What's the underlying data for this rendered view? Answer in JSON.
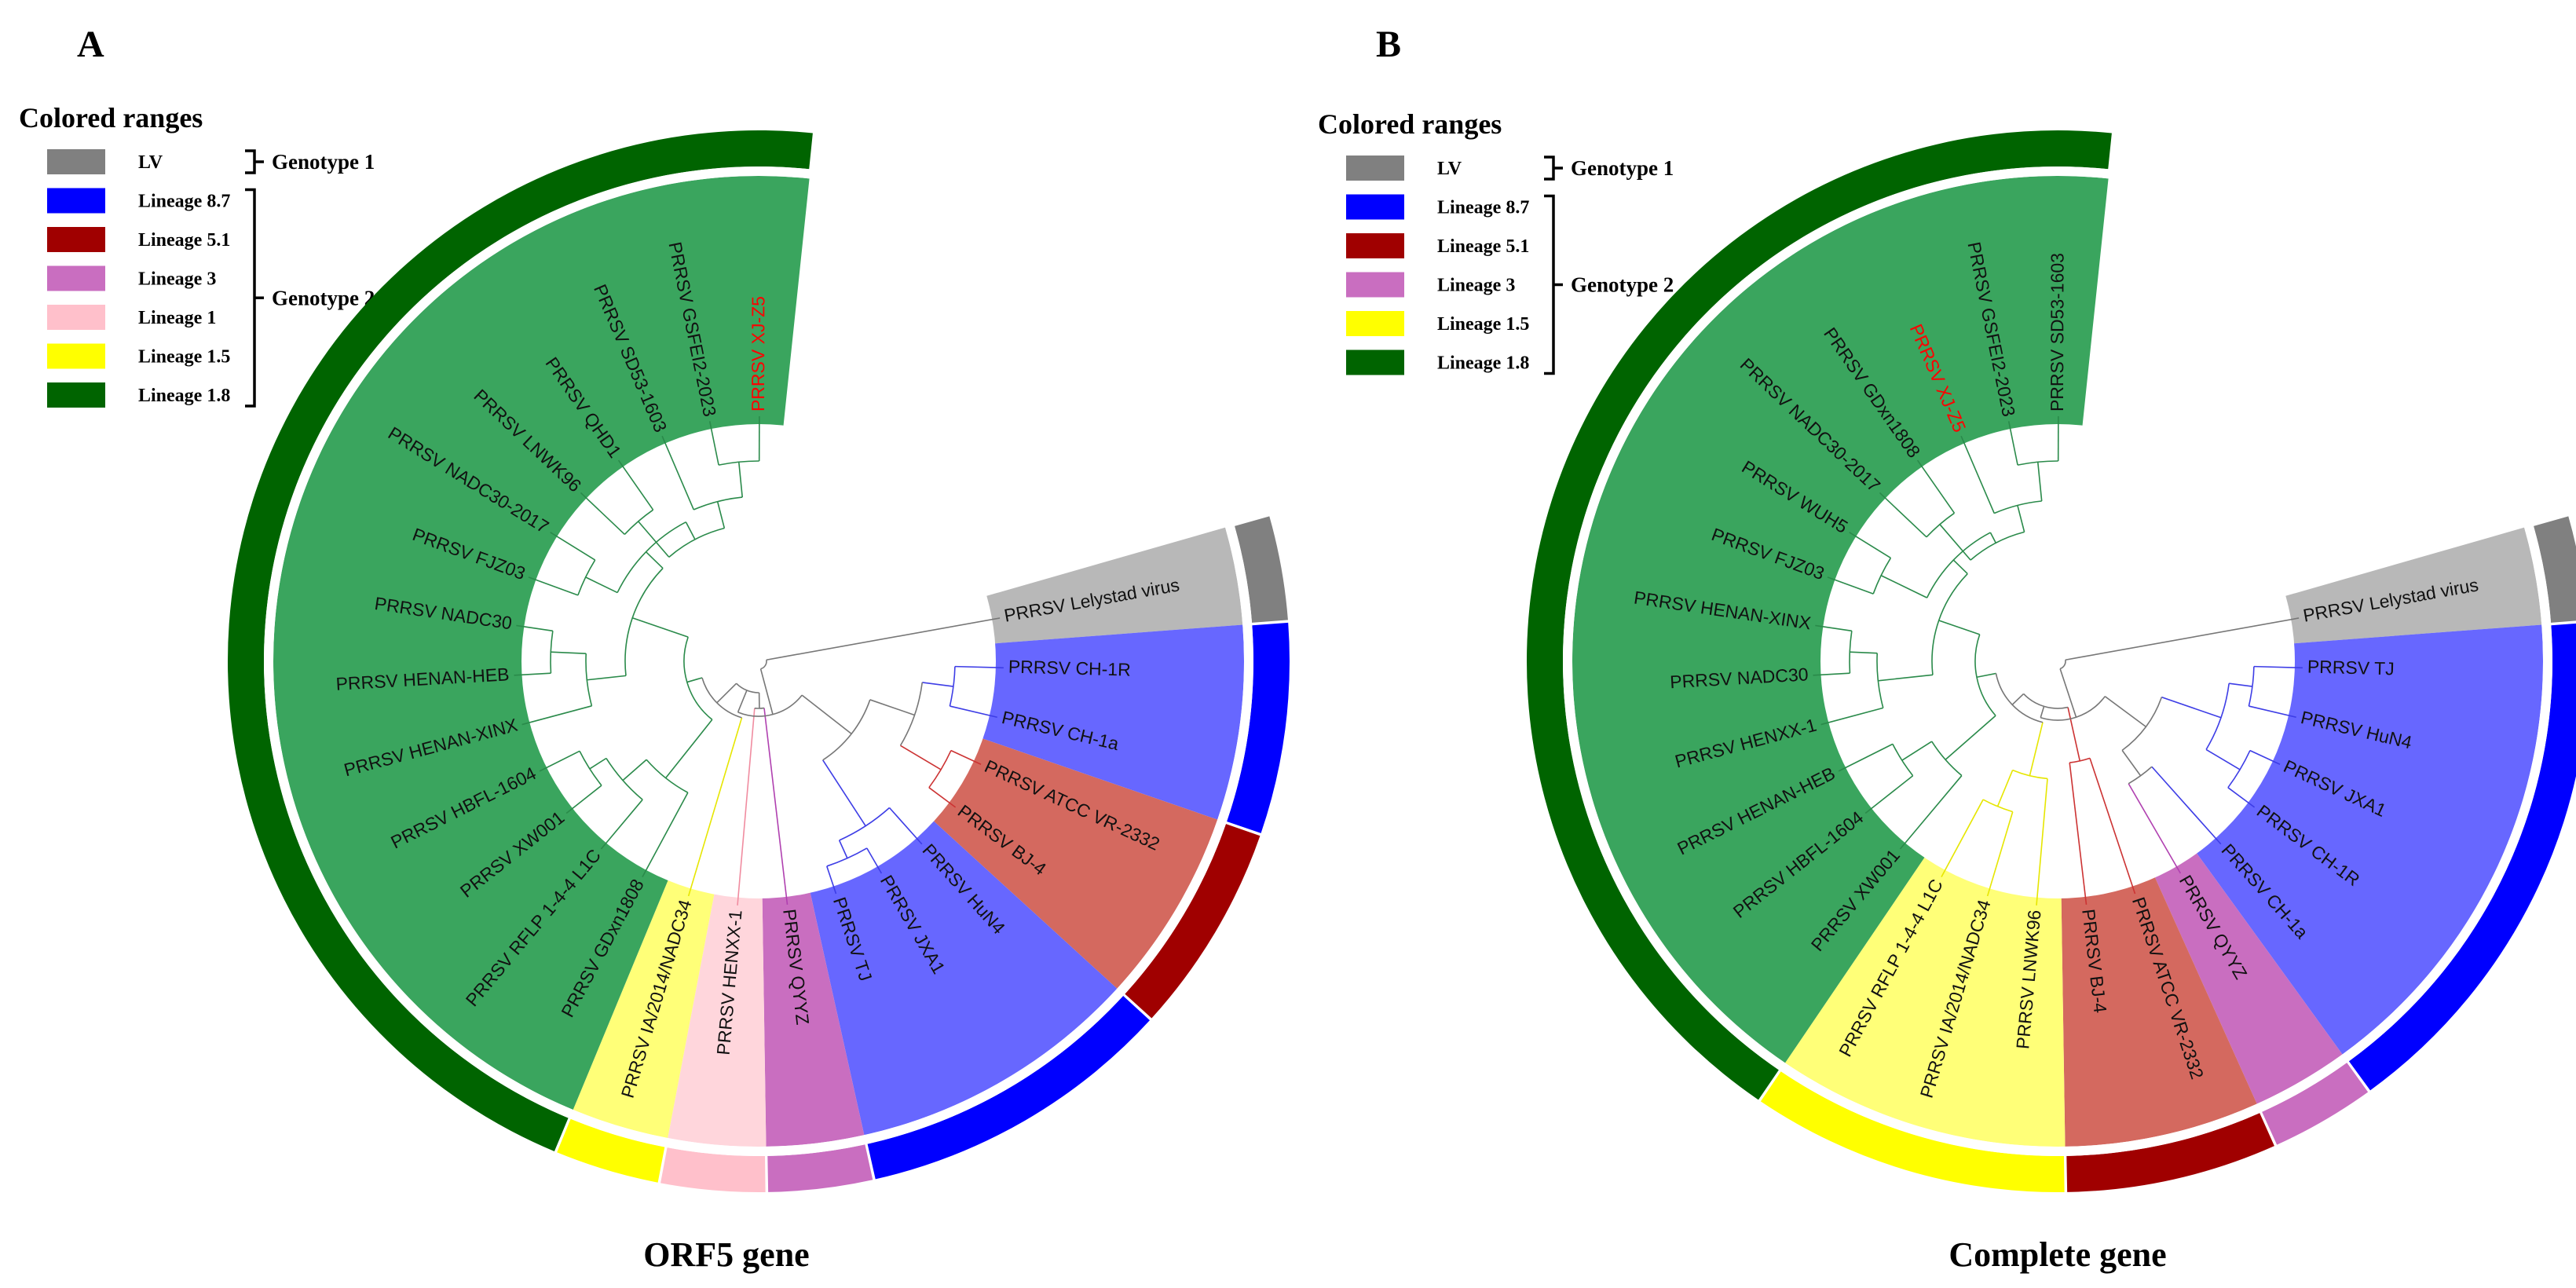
{
  "colors": {
    "LV": "#808080",
    "L8.7": "#0000ff",
    "L5.1": "#a00000",
    "L3": "#c96ec0",
    "L1": "#ffc0cb",
    "L1.5": "#ffff00",
    "L1.8": "#006400",
    "wedge": {
      "LV": "#b8b8b8",
      "L8.7": "#6767ff",
      "L5.1": "#d4695f",
      "L3": "#c96ec0",
      "L1": "#ffd6dc",
      "L1.5": "#ffff78",
      "L1.8": "#3aa55e"
    },
    "branch": {
      "LV": "#777777",
      "L8.7": "#3d3de6",
      "L5.1": "#cc3333",
      "L3": "#b040b0",
      "L1": "#f08ca0",
      "L1.5": "#e6e600",
      "L1.8": "#2a8a4a"
    },
    "highlight": "#ff0000"
  },
  "panels": [
    {
      "id": "A",
      "label": "A",
      "title": "ORF5 gene",
      "legend": {
        "heading": "Colored ranges",
        "entries": [
          {
            "key": "LV",
            "label": "LV"
          },
          {
            "key": "L8.7",
            "label": "Lineage 8.7"
          },
          {
            "key": "L5.1",
            "label": "Lineage 5.1"
          },
          {
            "key": "L3",
            "label": "Lineage 3"
          },
          {
            "key": "L1",
            "label": "Lineage 1"
          },
          {
            "key": "L1.5",
            "label": "Lineage 1.5"
          },
          {
            "key": "L1.8",
            "label": "Lineage 1.8"
          }
        ],
        "genotypes": [
          {
            "label": "Genotype 1",
            "from": 0,
            "to": 0
          },
          {
            "label": "Genotype 2",
            "from": 1,
            "to": 6
          }
        ]
      },
      "tree": {
        "start_angle": -16,
        "end_angle": 276,
        "leaves": [
          {
            "name": "PRRSV Lelystad virus",
            "lineage": "LV"
          },
          {
            "name": "PRRSV CH-1R",
            "lineage": "L8.7"
          },
          {
            "name": "PRRSV CH-1a",
            "lineage": "L8.7"
          },
          {
            "name": "PRRSV ATCC VR-2332",
            "lineage": "L5.1"
          },
          {
            "name": "PRRSV BJ-4",
            "lineage": "L5.1"
          },
          {
            "name": "PRRSV HuN4",
            "lineage": "L8.7"
          },
          {
            "name": "PRRSV JXA1",
            "lineage": "L8.7"
          },
          {
            "name": "PRRSV TJ",
            "lineage": "L8.7"
          },
          {
            "name": "PRRSV QYYZ",
            "lineage": "L3"
          },
          {
            "name": "PRRSV HENXX-1",
            "lineage": "L1"
          },
          {
            "name": "PRRSV IA/2014/NADC34",
            "lineage": "L1.5"
          },
          {
            "name": "PRRSV GDxn1808",
            "lineage": "L1.8"
          },
          {
            "name": "PRRSV RFLP 1-4-4 L1C",
            "lineage": "L1.8"
          },
          {
            "name": "PRRSV XW001",
            "lineage": "L1.8"
          },
          {
            "name": "PRRSV HBFL-1604",
            "lineage": "L1.8"
          },
          {
            "name": "PRRSV HENAN-XINX",
            "lineage": "L1.8"
          },
          {
            "name": "PRRSV HENAN-HEB",
            "lineage": "L1.8"
          },
          {
            "name": "PRRSV NADC30",
            "lineage": "L1.8"
          },
          {
            "name": "PRRSV FJZ03",
            "lineage": "L1.8"
          },
          {
            "name": "PRRSV NADC30-2017",
            "lineage": "L1.8"
          },
          {
            "name": "PRRSV LNWK96",
            "lineage": "L1.8"
          },
          {
            "name": "PRRSV QHD1",
            "lineage": "L1.8"
          },
          {
            "name": "PRRSV SD53-1603",
            "lineage": "L1.8"
          },
          {
            "name": "PRRSV GSFEI2-2023",
            "lineage": "L1.8"
          },
          {
            "name": "PRRSV XJ-Z5",
            "lineage": "L1.8",
            "highlight": true
          }
        ]
      }
    },
    {
      "id": "B",
      "label": "B",
      "title": "Complete gene",
      "legend": {
        "heading": "Colored ranges",
        "entries": [
          {
            "key": "LV",
            "label": "LV"
          },
          {
            "key": "L8.7",
            "label": "Lineage 8.7"
          },
          {
            "key": "L5.1",
            "label": "Lineage 5.1"
          },
          {
            "key": "L3",
            "label": "Lineage 3"
          },
          {
            "key": "L1.5",
            "label": "Lineage 1.5"
          },
          {
            "key": "L1.8",
            "label": "Lineage 1.8"
          }
        ],
        "genotypes": [
          {
            "label": "Genotype 1",
            "from": 0,
            "to": 0
          },
          {
            "label": "Genotype 2",
            "from": 1,
            "to": 5
          }
        ]
      },
      "tree": {
        "start_angle": -16,
        "end_angle": 276,
        "leaves": [
          {
            "name": "PRRSV Lelystad virus",
            "lineage": "LV"
          },
          {
            "name": "PRRSV TJ",
            "lineage": "L8.7"
          },
          {
            "name": "PRRSV HuN4",
            "lineage": "L8.7"
          },
          {
            "name": "PRRSV JXA1",
            "lineage": "L8.7"
          },
          {
            "name": "PRRSV CH-1R",
            "lineage": "L8.7"
          },
          {
            "name": "PRRSV CH-1a",
            "lineage": "L8.7"
          },
          {
            "name": "PRRSV QYYZ",
            "lineage": "L3"
          },
          {
            "name": "PRRSV ATCC VR-2332",
            "lineage": "L5.1"
          },
          {
            "name": "PRRSV BJ-4",
            "lineage": "L5.1"
          },
          {
            "name": "PRRSV LNWK96",
            "lineage": "L1.5"
          },
          {
            "name": "PRRSV IA/2014/NADC34",
            "lineage": "L1.5"
          },
          {
            "name": "PRRSV RFLP 1-4-4 L1C",
            "lineage": "L1.5"
          },
          {
            "name": "PRRSV XW001",
            "lineage": "L1.8"
          },
          {
            "name": "PRRSV HBFL-1604",
            "lineage": "L1.8"
          },
          {
            "name": "PRRSV HENAN-HEB",
            "lineage": "L1.8"
          },
          {
            "name": "PRRSV HENXX-1",
            "lineage": "L1.8"
          },
          {
            "name": "PRRSV NADC30",
            "lineage": "L1.8"
          },
          {
            "name": "PRRSV HENAN-XINX",
            "lineage": "L1.8"
          },
          {
            "name": "PRRSV FJZ03",
            "lineage": "L1.8"
          },
          {
            "name": "PRRSV WUH5",
            "lineage": "L1.8"
          },
          {
            "name": "PRRSV NADC30-2017",
            "lineage": "L1.8"
          },
          {
            "name": "PRRSV GDxn1808",
            "lineage": "L1.8"
          },
          {
            "name": "PRRSV XJ-Z5",
            "lineage": "L1.8",
            "highlight": true
          },
          {
            "name": "PRRSV GSFEI2-2023",
            "lineage": "L1.8"
          },
          {
            "name": "PRRSV SD53-1603",
            "lineage": "L1.8"
          }
        ]
      }
    }
  ]
}
